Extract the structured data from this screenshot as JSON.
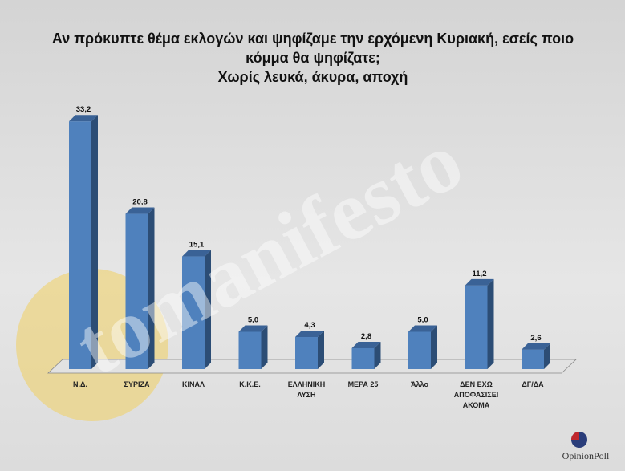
{
  "chart_data": {
    "type": "bar3d",
    "title": "Αν πρόκυπτε θέμα εκλογών και ψηφίζαμε την ερχόμενη Κυριακή, εσείς ποιο κόμμα θα ψηφίζατε;",
    "subtitle": "Χωρίς λευκά, άκυρα, αποχή",
    "categories": [
      "Ν.Δ.",
      "ΣΥΡΙΖΑ",
      "ΚΙΝΑΛ",
      "Κ.Κ.Ε.",
      "ΕΛΛΗΝΙΚΗ ΛΥΣΗ",
      "ΜΕΡΑ 25",
      "Άλλο",
      "ΔΕΝ ΕΧΩ ΑΠΟΦΑΣΙΣΕΙ ΑΚΟΜΑ",
      "ΔΓ/ΔΑ"
    ],
    "values": [
      33.2,
      20.8,
      15.1,
      5.0,
      4.3,
      2.8,
      5.0,
      11.2,
      2.6
    ],
    "value_labels": [
      "33,2",
      "20,8",
      "15,1",
      "5,0",
      "4,3",
      "2,8",
      "5,0",
      "11,2",
      "2,6"
    ],
    "color": "#4f81bd",
    "watermark": "tomanifesto",
    "logo": "OpinionPoll"
  }
}
